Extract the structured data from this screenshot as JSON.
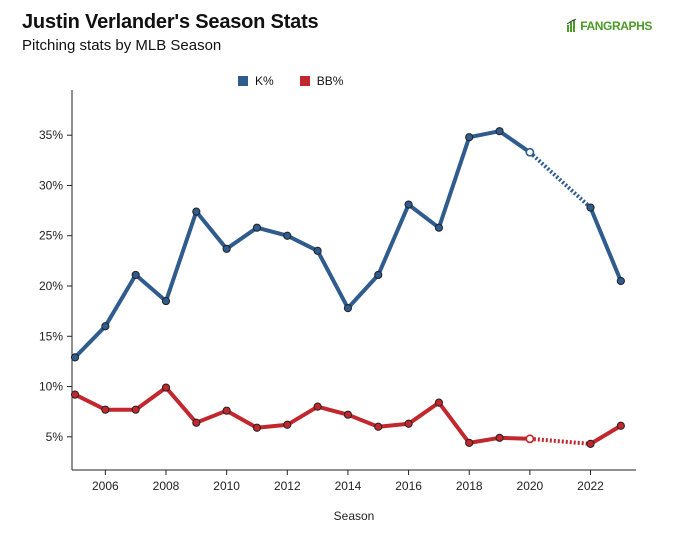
{
  "header": {
    "title": "Justin Verlander's Season Stats",
    "subtitle": "Pitching stats by MLB Season",
    "brand": "FANGRAPHS"
  },
  "legend": [
    {
      "name": "K%",
      "color": "#2f5b8d"
    },
    {
      "name": "BB%",
      "color": "#c1272d"
    }
  ],
  "chart_data": {
    "type": "line",
    "title": "Justin Verlander's Season Stats",
    "subtitle": "Pitching stats by MLB Season",
    "xlabel": "Season",
    "ylabel": "",
    "x": [
      2005,
      2006,
      2007,
      2008,
      2009,
      2010,
      2011,
      2012,
      2013,
      2014,
      2015,
      2016,
      2017,
      2018,
      2019,
      2020,
      2023
    ],
    "series": [
      {
        "name": "K%",
        "color": "#2f5b8d",
        "values": [
          12.9,
          16.0,
          21.1,
          18.5,
          27.4,
          23.7,
          25.8,
          25.0,
          23.5,
          17.8,
          21.1,
          28.1,
          25.8,
          34.8,
          35.4,
          33.3,
          20.5
        ],
        "gap": {
          "from": 2020,
          "to": 2022,
          "value_2022": 27.8
        }
      },
      {
        "name": "BB%",
        "color": "#c1272d",
        "values": [
          9.2,
          7.7,
          7.7,
          9.9,
          6.4,
          7.6,
          5.9,
          6.2,
          8.0,
          7.2,
          6.0,
          6.3,
          8.4,
          4.4,
          4.9,
          4.8,
          6.1
        ],
        "gap": {
          "from": 2020,
          "to": 2022,
          "value_2022": 4.3
        }
      }
    ],
    "x_ticks": [
      2006,
      2008,
      2010,
      2012,
      2014,
      2016,
      2018,
      2020,
      2022
    ],
    "y_ticks": [
      5,
      10,
      15,
      20,
      25,
      30,
      35
    ],
    "y_tick_suffix": "%",
    "xlim": [
      2004.9,
      2023.5
    ],
    "ylim": [
      1.7,
      38.5
    ],
    "legend_position": "top-left",
    "grid": false
  }
}
